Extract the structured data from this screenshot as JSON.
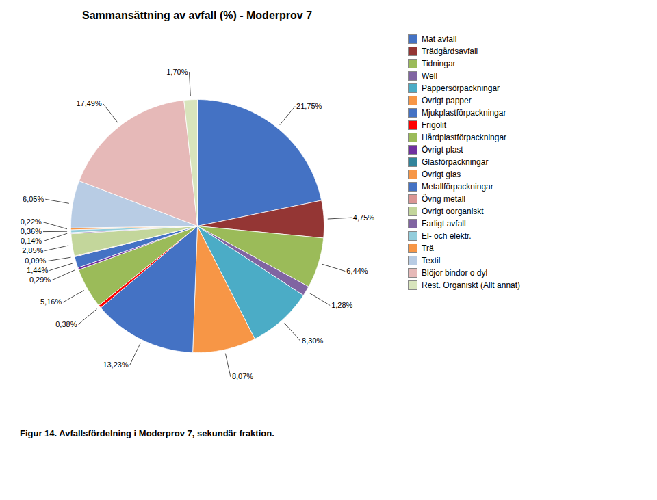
{
  "chart_data": {
    "type": "pie",
    "title": "Sammansättning av avfall (%) - Moderprov 7",
    "caption": "Figur 14. Avfallsfördelning i Moderprov 7, sekundär fraktion.",
    "categories": [
      "Mat avfall",
      "Trädgårdsavfall",
      "Tidningar",
      "Well",
      "Pappersörpackningar",
      "Övrigt papper",
      "Mjukplastförpackningar",
      "Frigolit",
      "Hårdplastförpackningar",
      "Övrigt plast",
      "Glasförpackningar",
      "Övrigt glas",
      "Metallförpackningar",
      "Övrig metall",
      "Övrigt oorganiskt",
      "Farligt avfall",
      "El- och elektr.",
      "Trä",
      "Textil",
      "Blöjor bindor o dyl",
      "Rest. Organiskt (Allt annat)"
    ],
    "values": [
      21.75,
      4.75,
      6.44,
      1.28,
      8.3,
      8.07,
      13.23,
      0.38,
      5.16,
      0.29,
      0.0,
      0.0,
      1.44,
      0.09,
      2.85,
      0.14,
      0.36,
      0.22,
      6.05,
      17.49,
      1.7
    ],
    "value_labels": [
      "21,75%",
      "4,75%",
      "6,44%",
      "1,28%",
      "8,30%",
      "8,07%",
      "13,23%",
      "0,38%",
      "5,16%",
      "0,29%",
      null,
      null,
      "1,44%",
      "0,09%",
      "2,85%",
      "0,14%",
      "0,36%",
      "0,22%",
      "6,05%",
      "17,49%",
      "1,70%"
    ],
    "colors": [
      "#4472C4",
      "#943634",
      "#9BBB59",
      "#8064A2",
      "#4BACC6",
      "#F79646",
      "#4472C4",
      "#FF0000",
      "#9BBB59",
      "#7030A0",
      "#31849B",
      "#F79646",
      "#4472C4",
      "#DA9694",
      "#C3D69B",
      "#8064A2",
      "#92CDDC",
      "#F79646",
      "#B8CCE4",
      "#E6B9B8",
      "#D8E4BC"
    ],
    "data_labels": true,
    "legend": "right"
  }
}
